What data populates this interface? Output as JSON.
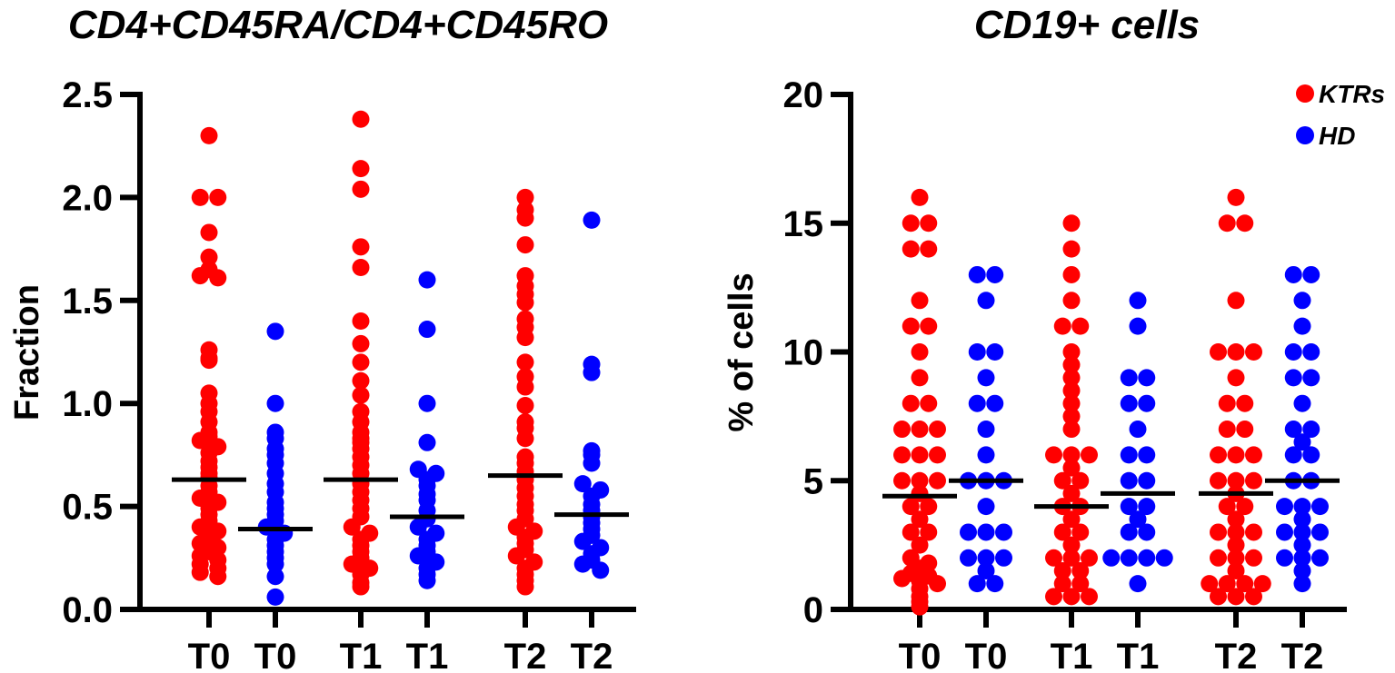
{
  "chart_data": [
    {
      "type": "scatter",
      "title": "CD4+CD45RA/CD4+CD45RO",
      "xlabel": "",
      "ylabel": "Fraction",
      "ylim": [
        0,
        2.5
      ],
      "yticks": [
        "0.0",
        "0.5",
        "1.0",
        "1.5",
        "2.0",
        "2.5"
      ],
      "categories": [
        "T0",
        "T0",
        "T1",
        "T1",
        "T2",
        "T2"
      ],
      "groups": [
        "KTRs",
        "HD",
        "KTRs",
        "HD",
        "KTRs",
        "HD"
      ],
      "medians": [
        0.63,
        0.39,
        0.63,
        0.45,
        0.65,
        0.46
      ],
      "values": [
        [
          2.3,
          2.0,
          2.0,
          1.83,
          1.71,
          1.65,
          1.62,
          1.61,
          1.26,
          1.22,
          1.21,
          1.05,
          1.0,
          0.96,
          0.91,
          0.86,
          0.84,
          0.82,
          0.79,
          0.76,
          0.72,
          0.69,
          0.66,
          0.64,
          0.6,
          0.57,
          0.54,
          0.52,
          0.49,
          0.46,
          0.43,
          0.4,
          0.38,
          0.35,
          0.32,
          0.3,
          0.28,
          0.26,
          0.24,
          0.22,
          0.2,
          0.18,
          0.16
        ],
        [
          1.35,
          1.0,
          0.86,
          0.83,
          0.78,
          0.75,
          0.71,
          0.66,
          0.61,
          0.57,
          0.52,
          0.49,
          0.46,
          0.43,
          0.4,
          0.37,
          0.34,
          0.31,
          0.28,
          0.25,
          0.22,
          0.16,
          0.06
        ],
        [
          2.38,
          2.14,
          2.04,
          1.76,
          1.66,
          1.4,
          1.29,
          1.2,
          1.11,
          1.04,
          0.96,
          0.91,
          0.86,
          0.83,
          0.81,
          0.78,
          0.74,
          0.7,
          0.66,
          0.61,
          0.57,
          0.53,
          0.49,
          0.45,
          0.4,
          0.37,
          0.34,
          0.31,
          0.28,
          0.25,
          0.22,
          0.2,
          0.17,
          0.13,
          0.11
        ],
        [
          1.6,
          1.36,
          1.0,
          0.81,
          0.68,
          0.66,
          0.63,
          0.6,
          0.56,
          0.53,
          0.48,
          0.44,
          0.4,
          0.37,
          0.34,
          0.31,
          0.28,
          0.26,
          0.23,
          0.2,
          0.17,
          0.14
        ],
        [
          2.0,
          1.94,
          1.9,
          1.77,
          1.62,
          1.57,
          1.53,
          1.49,
          1.41,
          1.37,
          1.32,
          1.2,
          1.13,
          1.08,
          0.99,
          0.91,
          0.88,
          0.83,
          0.74,
          0.71,
          0.67,
          0.63,
          0.59,
          0.55,
          0.51,
          0.48,
          0.44,
          0.4,
          0.38,
          0.35,
          0.32,
          0.29,
          0.26,
          0.23,
          0.2,
          0.17,
          0.14,
          0.11
        ],
        [
          1.89,
          1.19,
          1.15,
          0.77,
          0.75,
          0.71,
          0.61,
          0.58,
          0.55,
          0.51,
          0.48,
          0.45,
          0.42,
          0.39,
          0.36,
          0.33,
          0.3,
          0.27,
          0.24,
          0.22,
          0.19
        ]
      ]
    },
    {
      "type": "scatter",
      "title": "CD19+ cells",
      "xlabel": "",
      "ylabel": "% of cells",
      "ylim": [
        0,
        20
      ],
      "yticks": [
        "0",
        "5",
        "10",
        "15",
        "20"
      ],
      "categories": [
        "T0",
        "T0",
        "T1",
        "T1",
        "T2",
        "T2"
      ],
      "groups": [
        "KTRs",
        "HD",
        "KTRs",
        "HD",
        "KTRs",
        "HD"
      ],
      "medians": [
        4.4,
        5.0,
        4.0,
        4.5,
        4.5,
        5.0
      ],
      "values": [
        [
          16,
          15,
          15,
          14,
          14,
          12,
          11,
          11,
          10,
          9,
          8,
          8,
          7,
          7,
          7,
          6,
          6,
          6,
          5,
          5,
          5,
          4.5,
          4,
          4,
          3.5,
          3,
          3,
          2.5,
          2,
          1.8,
          1.6,
          1.4,
          1.3,
          1.2,
          1.1,
          1.0,
          0.8,
          0.5,
          0.3,
          0.1
        ],
        [
          13,
          13,
          12,
          10,
          10,
          9,
          8,
          8,
          7,
          6,
          5,
          5,
          5,
          4,
          3,
          3,
          3,
          2,
          2,
          2,
          1.5,
          1,
          1
        ],
        [
          15,
          14,
          13,
          12,
          11,
          11,
          10,
          9.5,
          9,
          8.5,
          8,
          7.5,
          7,
          6,
          6,
          6,
          5.5,
          5,
          5,
          4.5,
          4,
          4,
          3.5,
          3,
          3,
          2.5,
          2,
          2,
          2,
          1.5,
          1.5,
          1,
          1,
          0.5,
          0.5,
          0.5
        ],
        [
          12,
          11,
          9,
          9,
          8,
          8,
          7,
          6,
          6,
          5,
          5,
          4,
          4,
          3.5,
          3,
          3,
          2,
          2,
          2,
          2,
          1
        ],
        [
          16,
          15,
          15,
          12,
          10,
          10,
          10,
          9,
          8,
          8,
          7,
          7,
          6,
          6,
          6,
          5,
          5,
          5,
          4.5,
          4,
          4,
          3.5,
          3,
          3,
          3,
          2.5,
          2,
          2,
          2,
          1.5,
          1,
          1,
          1,
          1,
          0.5,
          0.5,
          0.5
        ],
        [
          13,
          13,
          12,
          11,
          10,
          10,
          9,
          9,
          8,
          7,
          7,
          6.5,
          6,
          6,
          5,
          5,
          4,
          4,
          4,
          3.5,
          3,
          3,
          3,
          2.5,
          2,
          2,
          2,
          1.5,
          1
        ]
      ]
    }
  ],
  "legend": [
    {
      "label": "KTRs",
      "color": "#ff0000"
    },
    {
      "label": "HD",
      "color": "#0000ff"
    }
  ],
  "colors": {
    "KTRs": "#ff0000",
    "HD": "#0000ff",
    "median": "#000000"
  }
}
